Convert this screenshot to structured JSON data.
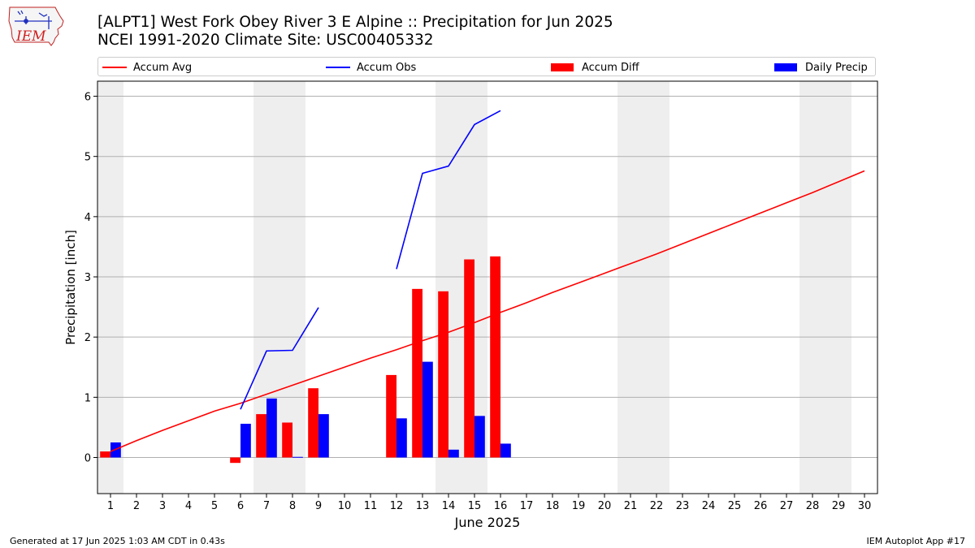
{
  "header": {
    "title_line1": "[ALPT1] West Fork Obey River 3 E Alpine :: Precipitation for Jun 2025",
    "title_line2": "NCEI 1991-2020 Climate Site: USC00405332"
  },
  "logo": {
    "text": "IEM",
    "icon": "iem-iowa-map-logo"
  },
  "legend": [
    {
      "label": "Accum Avg",
      "kind": "line",
      "color": "#ff0000"
    },
    {
      "label": "Accum Obs",
      "kind": "line",
      "color": "#0000ff"
    },
    {
      "label": "Accum Diff",
      "kind": "bar",
      "color": "#ff0000"
    },
    {
      "label": "Daily Precip",
      "kind": "bar",
      "color": "#0000ff"
    }
  ],
  "chart_data": {
    "type": "bar",
    "xlabel": "June 2025",
    "ylabel": "Precipitation [inch]",
    "x": [
      1,
      2,
      3,
      4,
      5,
      6,
      7,
      8,
      9,
      10,
      11,
      12,
      13,
      14,
      15,
      16,
      17,
      18,
      19,
      20,
      21,
      22,
      23,
      24,
      25,
      26,
      27,
      28,
      29,
      30
    ],
    "xlim": [
      0.5,
      30.5
    ],
    "ylim": [
      -0.6,
      6.25
    ],
    "yticks": [
      0,
      1,
      2,
      3,
      4,
      5,
      6
    ],
    "grid": "horizontal",
    "weekend_shading": [
      1,
      7,
      8,
      14,
      15,
      21,
      22,
      28,
      29
    ],
    "legend_placement": "top",
    "series": [
      {
        "name": "Accum Avg",
        "type": "line",
        "color": "#ff0000",
        "values": [
          0.1,
          0.28,
          0.45,
          0.61,
          0.77,
          0.9,
          1.05,
          1.2,
          1.35,
          1.5,
          1.65,
          1.79,
          1.94,
          2.08,
          2.24,
          2.41,
          2.57,
          2.74,
          2.9,
          3.06,
          3.22,
          3.38,
          3.55,
          3.72,
          3.89,
          4.06,
          4.23,
          4.4,
          4.58,
          4.76
        ]
      },
      {
        "name": "Accum Obs",
        "type": "line",
        "color": "#0000ff",
        "values": [
          null,
          null,
          null,
          null,
          null,
          0.8,
          1.77,
          1.78,
          2.49,
          null,
          null,
          3.13,
          4.72,
          4.84,
          5.53,
          5.76,
          null,
          null,
          null,
          null,
          null,
          null,
          null,
          null,
          null,
          null,
          null,
          null,
          null,
          null
        ]
      },
      {
        "name": "Accum Diff",
        "type": "bar",
        "color": "#ff0000",
        "values": [
          0.1,
          0,
          0,
          0,
          0,
          -0.09,
          0.72,
          0.58,
          1.15,
          0,
          0,
          1.37,
          2.8,
          2.76,
          3.29,
          3.34,
          0,
          0,
          0,
          0,
          0,
          0,
          0,
          0,
          0,
          0,
          0,
          0,
          0,
          0
        ]
      },
      {
        "name": "Daily Precip",
        "type": "bar",
        "color": "#0000ff",
        "values": [
          0.25,
          0,
          0,
          0,
          0,
          0.56,
          0.98,
          0.01,
          0.72,
          0,
          0,
          0.65,
          1.59,
          0.13,
          0.69,
          0.23,
          0,
          0,
          0,
          0,
          0,
          0,
          0,
          0,
          0,
          0,
          0,
          0,
          0,
          0
        ]
      }
    ]
  },
  "footer": {
    "left": "Generated at 17 Jun 2025 1:03 AM CDT in 0.43s",
    "right": "IEM Autoplot App #17"
  }
}
